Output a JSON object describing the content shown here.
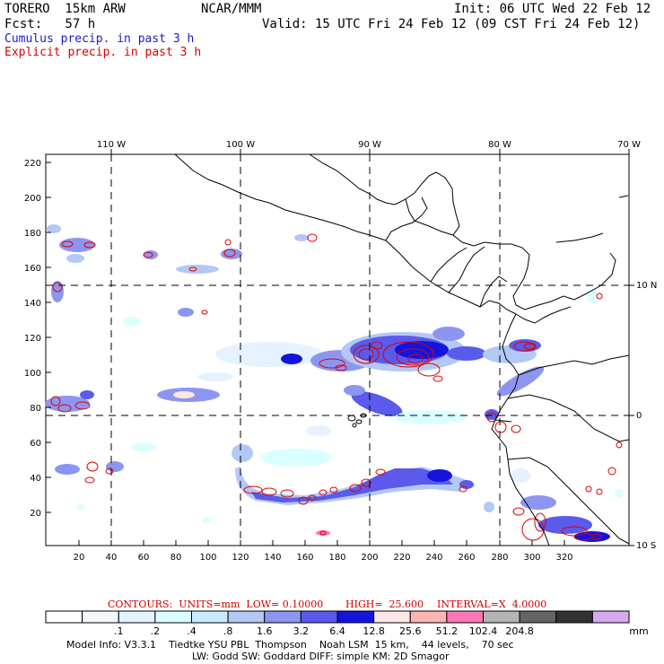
{
  "header": {
    "model": "TORERO  15km ARW",
    "org": "NCAR/MMM",
    "init": "Init: 06 UTC Wed 22 Feb 12",
    "fcst": "Fcst:   57 h",
    "valid": "Valid: 15 UTC Fri 24 Feb 12 (09 CST Fri 24 Feb 12)",
    "field1": "Cumulus precip. in past 3 h",
    "field2": "Explicit precip. in past 3 h",
    "field1_color": "#1a1acc",
    "field2_color": "#dd0000"
  },
  "map": {
    "lon_labels": [
      "110 W",
      "100 W",
      "90 W",
      "80 W",
      "70 W"
    ],
    "lat_labels": [
      "10 N",
      "0",
      "10 S"
    ],
    "y_ticks": [
      "220",
      "200",
      "180",
      "160",
      "140",
      "120",
      "100",
      "80",
      "60",
      "40",
      "20"
    ],
    "x_ticks": [
      "20",
      "40",
      "60",
      "80",
      "100",
      "120",
      "140",
      "160",
      "180",
      "200",
      "220",
      "240",
      "260",
      "280",
      "300",
      "320"
    ]
  },
  "contours": {
    "units": "CONTOURS:  UNITS=mm  LOW= 0.10000",
    "high": "HIGH=  25.600",
    "interval": "INTERVAL=X  4.0000"
  },
  "colorbar": {
    "colors": [
      "#ffffff",
      "#f3f8ff",
      "#e6f2ff",
      "#d9ffff",
      "#c8ecff",
      "#b4c8f5",
      "#8c96f0",
      "#5a5aeb",
      "#1414dc",
      "#ffe6e6",
      "#ffb4b4",
      "#ff78b4",
      "#b4b4b4",
      "#646464",
      "#323232",
      "#d7aaf0"
    ],
    "labels": [
      ".1",
      ".2",
      ".4",
      ".8",
      "1.6",
      "3.2",
      "6.4",
      "12.8",
      "25.6",
      "51.2",
      "102.4",
      "204.8"
    ],
    "unit": "mm"
  },
  "footer": {
    "line1": "Model Info: V3.3.1    Tiedtke YSU PBL  Thompson    Noah LSM  15 km,    44 levels,    70 sec",
    "line2": "LW: Godd SW: Goddard DIFF: simple KM: 2D Smagor"
  }
}
